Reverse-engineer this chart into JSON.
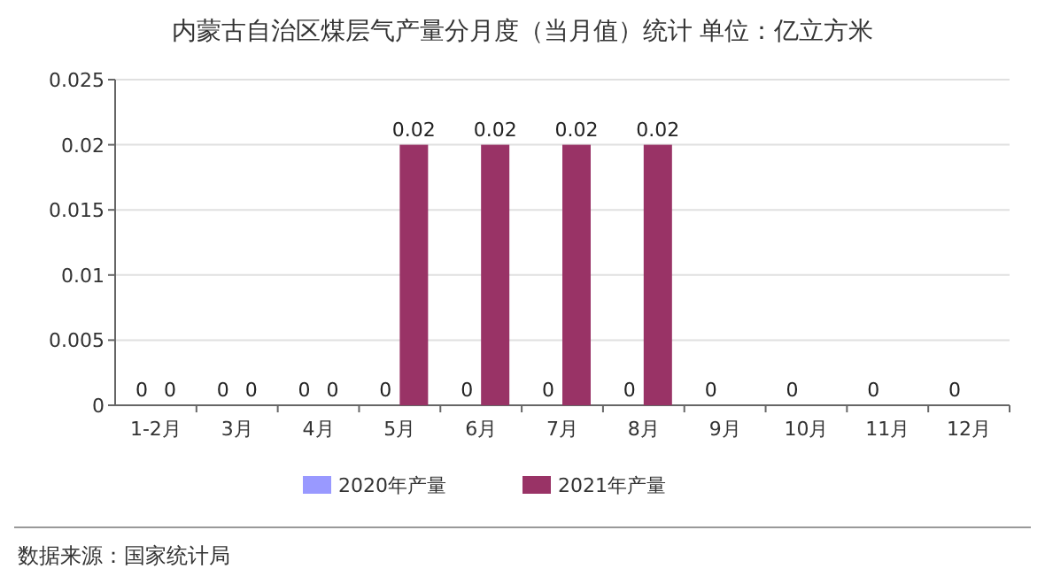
{
  "chart_data": {
    "type": "bar",
    "title": "内蒙古自治区煤层气产量分月度（当月值）统计  单位：亿立方米",
    "categories": [
      "1-2月",
      "3月",
      "4月",
      "5月",
      "6月",
      "7月",
      "8月",
      "9月",
      "10月",
      "11月",
      "12月"
    ],
    "series": [
      {
        "name": "2020年产量",
        "color": "#9999ff",
        "values": [
          0,
          0,
          0,
          0,
          0,
          0,
          0,
          0,
          0,
          0,
          0
        ]
      },
      {
        "name": "2021年产量",
        "color": "#993366",
        "values": [
          0,
          0,
          0,
          0.02,
          0.02,
          0.02,
          0.02,
          null,
          null,
          null,
          null
        ]
      }
    ],
    "ylim": [
      0,
      0.025
    ],
    "yticks": [
      0,
      0.005,
      0.01,
      0.015,
      0.02,
      0.025
    ],
    "grid": "y",
    "legend": "bottom",
    "data_labels": true,
    "annotations": [
      "数据来源：国家统计局"
    ]
  }
}
